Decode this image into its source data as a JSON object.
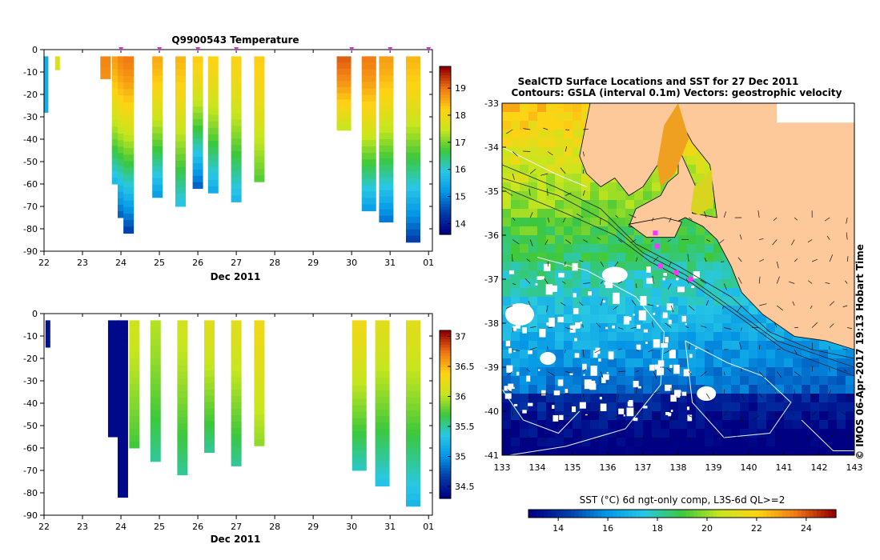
{
  "chart_data": [
    {
      "type": "heatmap",
      "title": "Q9900543  Temperature",
      "xlabel": "Dec 2011",
      "x_ticks": [
        "22",
        "23",
        "24",
        "25",
        "26",
        "27",
        "28",
        "29",
        "30",
        "31",
        "01"
      ],
      "y_ticks": [
        "0",
        "-10",
        "-20",
        "-30",
        "-40",
        "-50",
        "-60",
        "-70",
        "-80",
        "-90"
      ],
      "xlim": [
        22,
        32.1
      ],
      "ylim": [
        -90,
        0
      ],
      "profile_marker_days": [
        24,
        25,
        26,
        27,
        30,
        31,
        32
      ],
      "colorbar": {
        "ticks": [
          "14",
          "15",
          "16",
          "17",
          "18",
          "19"
        ],
        "range": [
          13.6,
          19.8
        ]
      },
      "profiles": [
        {
          "day": 22.05,
          "depth": 28,
          "top": 15.5,
          "bottom": 15.5
        },
        {
          "day": 22.35,
          "depth": 9,
          "top": 17.8,
          "bottom": 17.6
        },
        {
          "day": 23.6,
          "depth": 13,
          "top": 18.9,
          "bottom": 18.8
        },
        {
          "day": 23.9,
          "depth": 60,
          "top": 18.7,
          "bottom": 15.6
        },
        {
          "day": 24.05,
          "depth": 75,
          "top": 18.9,
          "bottom": 14.6
        },
        {
          "day": 24.2,
          "depth": 82,
          "top": 19.0,
          "bottom": 14.3
        },
        {
          "day": 24.95,
          "depth": 66,
          "top": 18.6,
          "bottom": 15.2
        },
        {
          "day": 25.55,
          "depth": 70,
          "top": 18.5,
          "bottom": 15.8
        },
        {
          "day": 26.0,
          "depth": 62,
          "top": 18.3,
          "bottom": 14.6
        },
        {
          "day": 26.4,
          "depth": 64,
          "top": 18.2,
          "bottom": 15.4
        },
        {
          "day": 27.0,
          "depth": 68,
          "top": 18.2,
          "bottom": 15.6
        },
        {
          "day": 27.6,
          "depth": 59,
          "top": 18.3,
          "bottom": 16.8
        },
        {
          "day": 29.8,
          "depth": 36,
          "top": 19.2,
          "bottom": 17.4
        },
        {
          "day": 30.45,
          "depth": 72,
          "top": 19.0,
          "bottom": 15.2
        },
        {
          "day": 30.9,
          "depth": 77,
          "top": 18.7,
          "bottom": 14.8
        },
        {
          "day": 31.6,
          "depth": 86,
          "top": 18.5,
          "bottom": 14.3
        }
      ]
    },
    {
      "type": "heatmap",
      "title": "",
      "xlabel": "Dec 2011",
      "x_ticks": [
        "22",
        "23",
        "24",
        "25",
        "26",
        "27",
        "28",
        "29",
        "30",
        "31",
        "01"
      ],
      "y_ticks": [
        "0",
        "-10",
        "-20",
        "-30",
        "-40",
        "-50",
        "-60",
        "-70",
        "-80",
        "-90"
      ],
      "xlim": [
        22,
        32.1
      ],
      "ylim": [
        -90,
        0
      ],
      "colorbar": {
        "ticks": [
          "34.5",
          "35",
          "35.5",
          "36",
          "36.5",
          "37"
        ],
        "range": [
          34.3,
          37.1
        ]
      },
      "profiles": [
        {
          "day": 22.1,
          "depth": 15,
          "top": 34.4,
          "bottom": 34.4
        },
        {
          "day": 23.8,
          "depth": 55,
          "top": 34.35,
          "bottom": 34.35
        },
        {
          "day": 24.05,
          "depth": 82,
          "top": 34.35,
          "bottom": 34.35
        },
        {
          "day": 24.35,
          "depth": 60,
          "top": 36.1,
          "bottom": 35.7
        },
        {
          "day": 24.9,
          "depth": 66,
          "top": 36.0,
          "bottom": 35.5
        },
        {
          "day": 25.6,
          "depth": 72,
          "top": 36.1,
          "bottom": 35.5
        },
        {
          "day": 26.3,
          "depth": 62,
          "top": 36.2,
          "bottom": 35.5
        },
        {
          "day": 27.0,
          "depth": 68,
          "top": 36.2,
          "bottom": 35.5
        },
        {
          "day": 27.6,
          "depth": 59,
          "top": 36.3,
          "bottom": 35.9
        },
        {
          "day": 30.2,
          "depth": 70,
          "top": 36.3,
          "bottom": 35.4
        },
        {
          "day": 30.8,
          "depth": 77,
          "top": 36.2,
          "bottom": 35.3
        },
        {
          "day": 31.6,
          "depth": 86,
          "top": 36.2,
          "bottom": 35.2
        }
      ]
    },
    {
      "type": "heatmap",
      "title": "SealCTD Surface Locations and SST for 27 Dec 2011",
      "subtitle": "Contours: GSLA (interval 0.1m) Vectors: geostrophic velocity",
      "x_ticks": [
        "133",
        "134",
        "135",
        "136",
        "137",
        "138",
        "139",
        "140",
        "141",
        "142",
        "143"
      ],
      "y_ticks": [
        "-33",
        "-34",
        "-35",
        "-36",
        "-37",
        "-38",
        "-39",
        "-40",
        "-41"
      ],
      "xlim": [
        133,
        143
      ],
      "ylim": [
        -41,
        -33
      ],
      "side_label": "© IMOS 06-Apr-2017 19:13 Hobart Time",
      "colorbar": {
        "label": "SST (°C) 6d ngt-only comp, L3S-6d QL>=2",
        "ticks": [
          "14",
          "16",
          "18",
          "20",
          "22",
          "24"
        ],
        "range": [
          12.8,
          25.2
        ]
      },
      "seal_locations": [
        {
          "lon": 137.35,
          "lat": -35.95
        },
        {
          "lon": 137.4,
          "lat": -36.25
        },
        {
          "lon": 137.5,
          "lat": -36.7
        },
        {
          "lon": 137.95,
          "lat": -36.85
        },
        {
          "lon": 138.35,
          "lat": -37.0
        }
      ]
    }
  ]
}
